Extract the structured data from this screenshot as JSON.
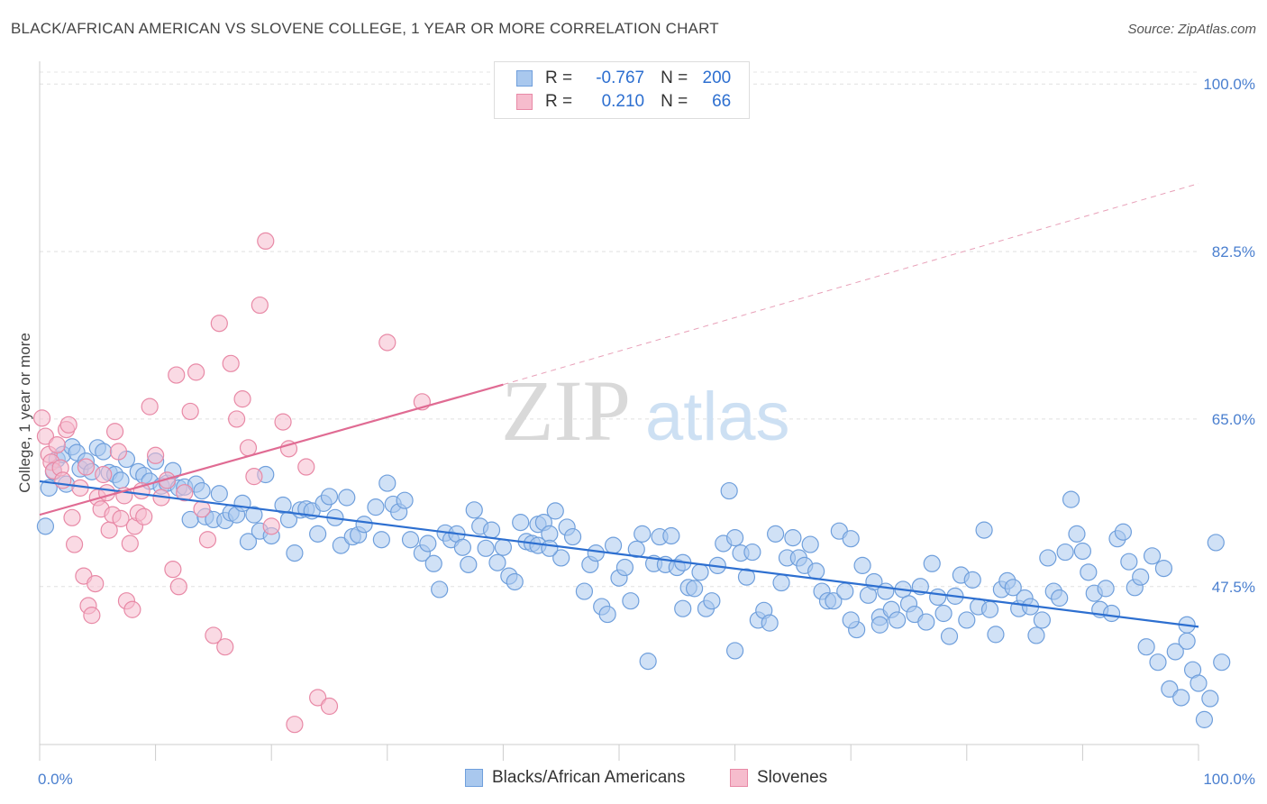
{
  "title": "BLACK/AFRICAN AMERICAN VS SLOVENE COLLEGE, 1 YEAR OR MORE CORRELATION CHART",
  "source": "Source: ZipAtlas.com",
  "watermark": {
    "zip": "ZIP",
    "atlas": "atlas"
  },
  "legend": {
    "rows": [
      {
        "r_label": "R =",
        "r_value": "-0.767",
        "n_label": "N =",
        "n_value": "200",
        "color": "#a9c8ee",
        "border": "#6f9fdc"
      },
      {
        "r_label": "R =",
        "r_value": "0.210",
        "n_label": "N =",
        "n_value": "66",
        "color": "#f6bccd",
        "border": "#e889a6"
      }
    ]
  },
  "bottom_legend": [
    {
      "label": "Blacks/African Americans",
      "color": "#a9c8ee",
      "border": "#6f9fdc"
    },
    {
      "label": "Slovenes",
      "color": "#f6bccd",
      "border": "#e889a6"
    }
  ],
  "chart_data": {
    "type": "scatter",
    "title": "BLACK/AFRICAN AMERICAN VS SLOVENE COLLEGE, 1 YEAR OR MORE CORRELATION CHART",
    "xlabel": "",
    "ylabel": "College, 1 year or more",
    "xlim": [
      0,
      100
    ],
    "ylim": [
      31,
      102
    ],
    "x_tick_labels": [
      "0.0%",
      "100.0%"
    ],
    "y_ticks": [
      47.5,
      65.0,
      82.5,
      100.0
    ],
    "y_tick_labels": [
      "47.5%",
      "65.0%",
      "82.5%",
      "100.0%"
    ],
    "grid": "horizontal dashed",
    "legend_placement": "top-center",
    "series": [
      {
        "name": "Blacks/African Americans",
        "color": "#6f9fdc",
        "fill": "#a9c8ee",
        "trend": {
          "x": [
            0,
            100
          ],
          "y": [
            58.5,
            43.3
          ]
        },
        "points": [
          [
            0.5,
            53.8
          ],
          [
            0.8,
            57.8
          ],
          [
            1.2,
            59.5
          ],
          [
            1.5,
            60.8
          ],
          [
            2.0,
            61.3
          ],
          [
            2.3,
            58.2
          ],
          [
            2.8,
            62.1
          ],
          [
            3.2,
            61.5
          ],
          [
            3.5,
            59.8
          ],
          [
            4.0,
            60.6
          ],
          [
            4.5,
            59.5
          ],
          [
            5.0,
            62.0
          ],
          [
            5.5,
            61.6
          ],
          [
            6.0,
            59.4
          ],
          [
            6.5,
            59.2
          ],
          [
            7.0,
            58.6
          ],
          [
            7.5,
            60.8
          ],
          [
            8.5,
            59.5
          ],
          [
            9.0,
            59.1
          ],
          [
            9.5,
            58.5
          ],
          [
            10.0,
            60.6
          ],
          [
            10.5,
            58.0
          ],
          [
            11.0,
            58.3
          ],
          [
            11.5,
            59.6
          ],
          [
            12.0,
            57.8
          ],
          [
            12.5,
            57.9
          ],
          [
            13.0,
            54.5
          ],
          [
            13.5,
            58.2
          ],
          [
            14.0,
            57.5
          ],
          [
            14.3,
            54.8
          ],
          [
            15.0,
            54.5
          ],
          [
            15.5,
            57.2
          ],
          [
            16.0,
            54.4
          ],
          [
            16.5,
            55.2
          ],
          [
            17.0,
            55.0
          ],
          [
            17.5,
            56.2
          ],
          [
            18.0,
            52.2
          ],
          [
            18.5,
            55.0
          ],
          [
            19.0,
            53.3
          ],
          [
            19.5,
            59.2
          ],
          [
            20.0,
            52.8
          ],
          [
            21.0,
            56.0
          ],
          [
            21.5,
            54.5
          ],
          [
            22.0,
            51.0
          ],
          [
            22.5,
            55.5
          ],
          [
            23.0,
            55.6
          ],
          [
            23.5,
            55.4
          ],
          [
            24.0,
            53.0
          ],
          [
            24.5,
            56.2
          ],
          [
            25.0,
            56.9
          ],
          [
            25.5,
            54.7
          ],
          [
            26.0,
            51.8
          ],
          [
            26.5,
            56.8
          ],
          [
            27.0,
            52.7
          ],
          [
            27.5,
            52.9
          ],
          [
            28.0,
            54.0
          ],
          [
            29.0,
            55.8
          ],
          [
            29.5,
            52.4
          ],
          [
            30.0,
            58.3
          ],
          [
            30.5,
            56.1
          ],
          [
            31.0,
            55.3
          ],
          [
            31.5,
            56.5
          ],
          [
            32.0,
            52.4
          ],
          [
            33.0,
            51.0
          ],
          [
            33.5,
            52.0
          ],
          [
            34.0,
            49.9
          ],
          [
            34.5,
            47.2
          ],
          [
            35.0,
            53.1
          ],
          [
            35.5,
            52.4
          ],
          [
            36.0,
            53.0
          ],
          [
            36.5,
            51.6
          ],
          [
            37.0,
            49.8
          ],
          [
            37.5,
            55.5
          ],
          [
            38.0,
            53.8
          ],
          [
            38.5,
            51.5
          ],
          [
            39.0,
            53.4
          ],
          [
            39.5,
            50.0
          ],
          [
            40.0,
            51.6
          ],
          [
            40.5,
            48.6
          ],
          [
            41.0,
            48.0
          ],
          [
            41.5,
            54.2
          ],
          [
            42.0,
            52.2
          ],
          [
            42.5,
            52.0
          ],
          [
            43.0,
            54.0
          ],
          [
            43.5,
            54.2
          ],
          [
            44.0,
            53.0
          ],
          [
            44.5,
            55.4
          ],
          [
            45.0,
            50.5
          ],
          [
            45.5,
            53.7
          ],
          [
            46.0,
            52.7
          ],
          [
            47.0,
            47.0
          ],
          [
            47.5,
            49.8
          ],
          [
            48.0,
            51.0
          ],
          [
            48.5,
            45.4
          ],
          [
            49.0,
            44.6
          ],
          [
            49.5,
            51.8
          ],
          [
            50.0,
            48.4
          ],
          [
            50.5,
            49.5
          ],
          [
            51.0,
            46.0
          ],
          [
            51.5,
            51.4
          ],
          [
            52.0,
            53.0
          ],
          [
            52.5,
            39.7
          ],
          [
            53.0,
            49.9
          ],
          [
            53.5,
            52.7
          ],
          [
            54.0,
            49.8
          ],
          [
            54.5,
            52.8
          ],
          [
            55.0,
            49.5
          ],
          [
            55.5,
            50.0
          ],
          [
            56.0,
            47.4
          ],
          [
            56.5,
            47.3
          ],
          [
            57.0,
            49.0
          ],
          [
            57.5,
            45.2
          ],
          [
            58.0,
            46.0
          ],
          [
            58.5,
            49.7
          ],
          [
            59.0,
            52.0
          ],
          [
            59.5,
            57.5
          ],
          [
            60.0,
            40.8
          ],
          [
            60.5,
            51.0
          ],
          [
            61.0,
            48.5
          ],
          [
            61.5,
            51.1
          ],
          [
            62.0,
            44.0
          ],
          [
            62.5,
            45.0
          ],
          [
            63.0,
            43.7
          ],
          [
            63.5,
            53.0
          ],
          [
            64.0,
            47.9
          ],
          [
            64.5,
            50.5
          ],
          [
            65.0,
            52.6
          ],
          [
            65.5,
            50.5
          ],
          [
            66.0,
            49.7
          ],
          [
            66.5,
            51.9
          ],
          [
            67.0,
            49.1
          ],
          [
            67.5,
            47.0
          ],
          [
            68.0,
            46.0
          ],
          [
            68.5,
            46.0
          ],
          [
            69.0,
            53.3
          ],
          [
            69.5,
            47.0
          ],
          [
            70.0,
            52.5
          ],
          [
            70.5,
            43.0
          ],
          [
            71.0,
            49.7
          ],
          [
            71.5,
            46.6
          ],
          [
            72.0,
            48.0
          ],
          [
            72.5,
            44.3
          ],
          [
            73.0,
            47.0
          ],
          [
            73.5,
            45.1
          ],
          [
            74.0,
            44.0
          ],
          [
            74.5,
            47.2
          ],
          [
            75.0,
            45.7
          ],
          [
            75.5,
            44.6
          ],
          [
            76.0,
            47.5
          ],
          [
            76.5,
            43.8
          ],
          [
            77.0,
            49.9
          ],
          [
            77.5,
            46.4
          ],
          [
            78.0,
            44.7
          ],
          [
            78.5,
            42.3
          ],
          [
            79.0,
            46.5
          ],
          [
            79.5,
            48.7
          ],
          [
            80.0,
            44.0
          ],
          [
            80.5,
            48.2
          ],
          [
            81.0,
            45.4
          ],
          [
            81.5,
            53.4
          ],
          [
            82.0,
            45.1
          ],
          [
            82.5,
            42.5
          ],
          [
            83.0,
            47.2
          ],
          [
            83.5,
            48.1
          ],
          [
            84.0,
            47.4
          ],
          [
            84.5,
            45.2
          ],
          [
            85.0,
            46.3
          ],
          [
            85.5,
            45.4
          ],
          [
            86.0,
            42.4
          ],
          [
            86.5,
            44.0
          ],
          [
            87.0,
            50.5
          ],
          [
            87.5,
            47.0
          ],
          [
            88.0,
            46.3
          ],
          [
            88.5,
            51.1
          ],
          [
            89.0,
            56.6
          ],
          [
            89.5,
            53.0
          ],
          [
            90.0,
            51.2
          ],
          [
            90.5,
            49.0
          ],
          [
            91.0,
            46.8
          ],
          [
            91.5,
            45.1
          ],
          [
            92.0,
            47.3
          ],
          [
            92.5,
            44.7
          ],
          [
            93.0,
            52.5
          ],
          [
            93.5,
            53.2
          ],
          [
            94.0,
            50.1
          ],
          [
            94.5,
            47.4
          ],
          [
            95.0,
            48.5
          ],
          [
            95.5,
            41.2
          ],
          [
            96.0,
            50.7
          ],
          [
            96.5,
            39.6
          ],
          [
            97.0,
            49.4
          ],
          [
            97.5,
            36.8
          ],
          [
            98.0,
            40.7
          ],
          [
            98.5,
            35.9
          ],
          [
            99.0,
            41.8
          ],
          [
            99.5,
            38.8
          ],
          [
            100.0,
            37.4
          ],
          [
            101.0,
            35.8
          ],
          [
            102.0,
            39.6
          ],
          [
            101.5,
            52.1
          ],
          [
            99.0,
            43.5
          ],
          [
            100.5,
            33.6
          ],
          [
            43.0,
            51.8
          ],
          [
            44.0,
            51.5
          ],
          [
            60.0,
            52.6
          ],
          [
            70.0,
            44.0
          ],
          [
            72.5,
            43.5
          ],
          [
            55.5,
            45.2
          ]
        ]
      },
      {
        "name": "Slovenes",
        "color": "#e889a6",
        "fill": "#f6bccd",
        "trend": {
          "x": [
            0,
            40
          ],
          "y": [
            55.0,
            68.6
          ]
        },
        "trend_extended": {
          "x": [
            40,
            100
          ],
          "y": [
            68.6,
            89.6
          ]
        },
        "points": [
          [
            0.2,
            65.1
          ],
          [
            0.5,
            63.2
          ],
          [
            0.8,
            61.3
          ],
          [
            1.0,
            60.5
          ],
          [
            1.2,
            59.6
          ],
          [
            1.5,
            62.3
          ],
          [
            1.8,
            59.9
          ],
          [
            2.0,
            58.6
          ],
          [
            2.3,
            63.9
          ],
          [
            2.5,
            64.4
          ],
          [
            2.8,
            54.7
          ],
          [
            3.0,
            51.9
          ],
          [
            3.5,
            57.8
          ],
          [
            3.8,
            48.6
          ],
          [
            4.0,
            60.0
          ],
          [
            4.2,
            45.5
          ],
          [
            4.5,
            44.5
          ],
          [
            4.8,
            47.8
          ],
          [
            5.0,
            56.8
          ],
          [
            5.3,
            55.6
          ],
          [
            5.5,
            59.2
          ],
          [
            5.8,
            57.3
          ],
          [
            6.0,
            53.4
          ],
          [
            6.3,
            55.0
          ],
          [
            6.5,
            63.7
          ],
          [
            6.8,
            61.6
          ],
          [
            7.0,
            54.6
          ],
          [
            7.3,
            57.0
          ],
          [
            7.5,
            46.0
          ],
          [
            7.8,
            52.0
          ],
          [
            8.0,
            45.1
          ],
          [
            8.2,
            53.8
          ],
          [
            8.5,
            55.2
          ],
          [
            8.8,
            57.5
          ],
          [
            9.0,
            54.8
          ],
          [
            9.5,
            66.3
          ],
          [
            10.0,
            61.2
          ],
          [
            10.5,
            56.8
          ],
          [
            11.0,
            58.6
          ],
          [
            11.5,
            49.3
          ],
          [
            11.8,
            69.6
          ],
          [
            12.0,
            47.5
          ],
          [
            12.5,
            57.3
          ],
          [
            13.0,
            65.8
          ],
          [
            13.5,
            69.9
          ],
          [
            14.0,
            55.6
          ],
          [
            14.5,
            52.4
          ],
          [
            15.0,
            42.4
          ],
          [
            15.5,
            75.0
          ],
          [
            16.0,
            41.2
          ],
          [
            16.5,
            70.8
          ],
          [
            17.0,
            65.0
          ],
          [
            17.5,
            67.1
          ],
          [
            18.0,
            62.0
          ],
          [
            18.5,
            59.0
          ],
          [
            19.0,
            76.9
          ],
          [
            19.5,
            83.6
          ],
          [
            20.0,
            53.8
          ],
          [
            21.0,
            64.7
          ],
          [
            21.5,
            61.9
          ],
          [
            22.0,
            33.1
          ],
          [
            23.0,
            60.0
          ],
          [
            24.0,
            35.9
          ],
          [
            25.0,
            35.0
          ],
          [
            30.0,
            73.0
          ],
          [
            33.0,
            66.8
          ]
        ]
      }
    ]
  }
}
